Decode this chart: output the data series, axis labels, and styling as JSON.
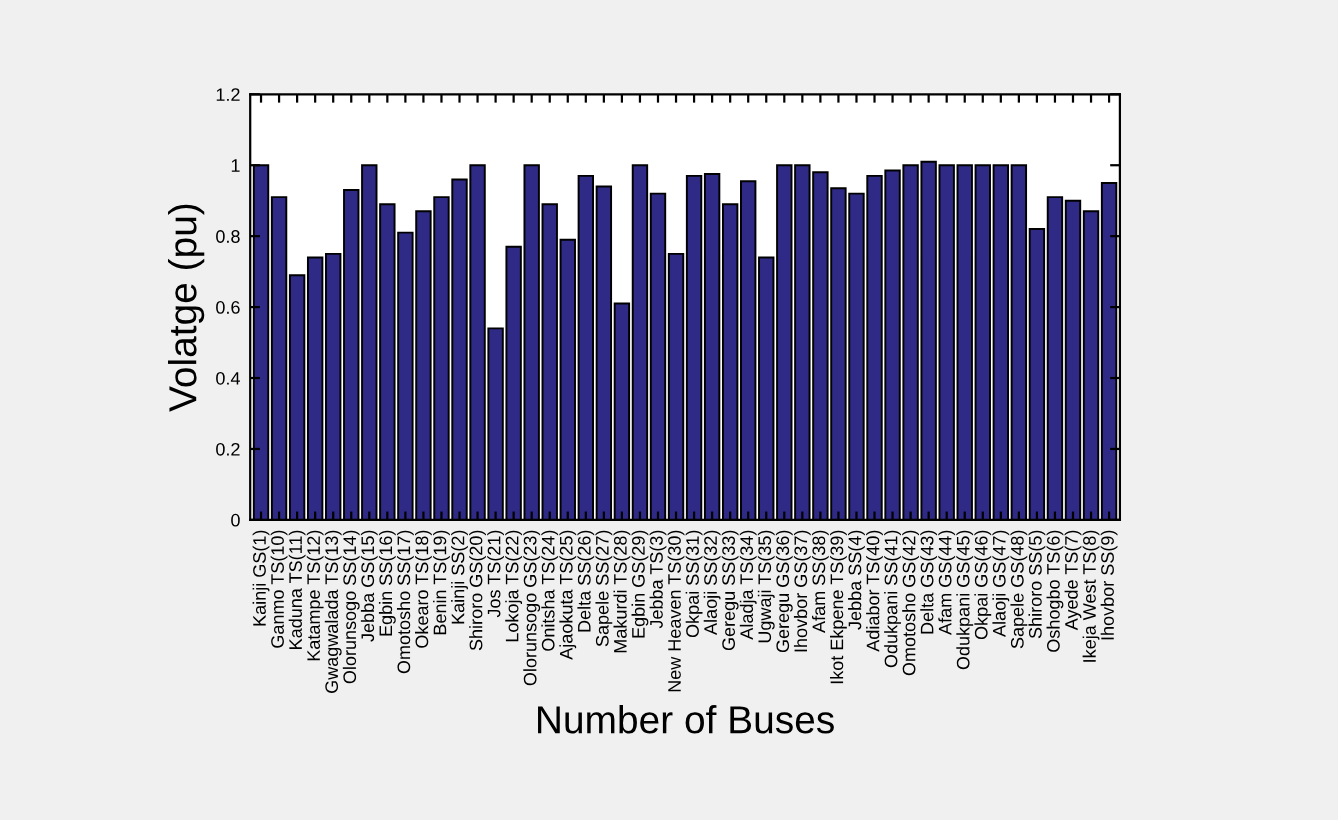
{
  "chart_data": {
    "type": "bar",
    "xlabel": "Number of Buses",
    "ylabel": "Volatge (pu)",
    "categories": [
      "Kainji GS(1)",
      "Ganmo TS(10)",
      "Kaduna TS(11)",
      "Katampe TS(12)",
      "Gwagwalada TS(13)",
      "Olorunsogo SS(14)",
      "Jebba GS(15)",
      "Egbin SS(16)",
      "Omotosho SS(17)",
      "Okearo TS(18)",
      "Benin TS(19)",
      "Kainji SS(2)",
      "Shiroro GS(20)",
      "Jos TS(21)",
      "Lokoja TS(22)",
      "Olorunsogo GS(23)",
      "Onitsha TS(24)",
      "Ajaokuta TS(25)",
      "Delta SS(26)",
      "Sapele SS(27)",
      "Makurdi TS(28)",
      "Egbin GS(29)",
      "Jebba TS(3)",
      "New Heaven TS(30)",
      "Okpai SS(31)",
      "Alaoji SS(32)",
      "Geregu SS(33)",
      "Aladja TS(34)",
      "Ugwaji TS(35)",
      "Geregu GS(36)",
      "Ihovbor GS(37)",
      "Afam SS(38)",
      "Ikot Ekpene TS(39)",
      "Jebba SS(4)",
      "Adiabor TS(40)",
      "Odukpani SS(41)",
      "Omotosho GS(42)",
      "Delta GS(43)",
      "Afam GS(44)",
      "Odukpani GS(45)",
      "Okpai GS(46)",
      "Alaoji GS(47)",
      "Sapele GS(48)",
      "Shiroro SS(5)",
      "Oshogbo TS(6)",
      "Ayede TS(7)",
      "Ikeja West TS(8)",
      "Ihovbor SS(9)"
    ],
    "values": [
      1.0,
      0.91,
      0.69,
      0.74,
      0.75,
      0.93,
      1.0,
      0.89,
      0.81,
      0.87,
      0.91,
      0.96,
      1.0,
      0.54,
      0.77,
      1.0,
      0.89,
      0.79,
      0.97,
      0.94,
      0.61,
      1.0,
      0.92,
      0.75,
      0.97,
      0.975,
      0.89,
      0.955,
      0.74,
      1.0,
      1.0,
      0.98,
      0.935,
      0.92,
      0.97,
      0.985,
      1.0,
      1.01,
      1.0,
      1.0,
      1.0,
      1.0,
      1.0,
      0.82,
      0.91,
      0.9,
      0.87,
      0.95
    ],
    "color": "#2f2a86",
    "ylim": [
      0,
      1.2
    ],
    "yticks": [
      0,
      0.2,
      0.4,
      0.6,
      0.8,
      1,
      1.2
    ],
    "grid": false
  }
}
